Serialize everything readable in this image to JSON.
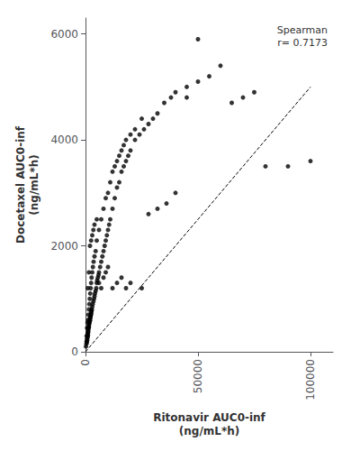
{
  "chart_data": {
    "type": "scatter",
    "xlabel": "Ritonavir AUC0-inf\n(ng/mL*h)",
    "ylabel": "Docetaxel AUC0-inf\n(ng/mL*h)",
    "annotation": "Spearman\nr= 0.7173",
    "xlim": [
      0,
      110000
    ],
    "ylim": [
      0,
      6300
    ],
    "xticks": [
      0,
      50000,
      100000
    ],
    "yticks": [
      0,
      2000,
      4000,
      6000
    ],
    "grid": false,
    "series": [
      {
        "type": "scatter",
        "color": "#000000",
        "marker": "circle",
        "x": [
          200,
          400,
          500,
          600,
          700,
          800,
          900,
          1000,
          1000,
          1100,
          1200,
          1200,
          1300,
          1400,
          1500,
          1500,
          1600,
          1700,
          1800,
          1800,
          1900,
          2000,
          2000,
          2100,
          2200,
          2300,
          2400,
          2500,
          2600,
          2700,
          2800,
          3000,
          3200,
          3500,
          3800,
          4000,
          4200,
          4500,
          4800,
          5000,
          5200,
          5500,
          5800,
          6000,
          6500,
          7000,
          7500,
          8000,
          8500,
          9000,
          9500,
          10000,
          10500,
          11000,
          12000,
          13000,
          14000,
          15000,
          16000,
          17000,
          18000,
          19000,
          20000,
          22000,
          24000,
          26000,
          28000,
          30000,
          32000,
          35000,
          38000,
          40000,
          45000,
          50000,
          55000,
          60000,
          65000,
          70000,
          75000,
          80000,
          90000,
          100000,
          500,
          700,
          900,
          1100,
          1300,
          1500,
          1700,
          1900,
          2100,
          2300,
          2500,
          2700,
          3000,
          3300,
          3600,
          4000,
          4500,
          5000,
          6000,
          7000,
          8000,
          9000,
          10000,
          11000,
          12000,
          13000,
          14000,
          15000,
          16000,
          17000,
          18000,
          20000,
          22000,
          25000,
          28000,
          32000,
          36000,
          40000,
          45000,
          50000,
          1000,
          1500,
          2000,
          2500,
          3000,
          3500,
          4000,
          5000,
          6000,
          7000,
          8000,
          9000,
          10000,
          12000,
          14000,
          16000,
          18000,
          20000,
          25000
        ],
        "values": [
          100,
          150,
          200,
          180,
          250,
          220,
          300,
          280,
          350,
          320,
          400,
          370,
          430,
          460,
          500,
          470,
          520,
          550,
          580,
          560,
          600,
          620,
          590,
          640,
          660,
          680,
          700,
          720,
          750,
          780,
          800,
          850,
          900,
          950,
          1000,
          1050,
          1100,
          1150,
          1200,
          1300,
          1350,
          1400,
          1450,
          1500,
          1600,
          1700,
          1800,
          1900,
          2000,
          2100,
          2200,
          2300,
          2400,
          2500,
          2700,
          2900,
          3100,
          3200,
          3400,
          3500,
          3600,
          3700,
          3800,
          4000,
          4100,
          4200,
          4300,
          4400,
          4500,
          4700,
          4800,
          4900,
          5000,
          5100,
          5200,
          5400,
          4700,
          4800,
          4900,
          3500,
          3500,
          3600,
          300,
          450,
          550,
          600,
          700,
          800,
          900,
          1000,
          1100,
          1200,
          1300,
          1400,
          1500,
          1600,
          1700,
          1800,
          1900,
          2100,
          2300,
          2500,
          2700,
          2900,
          3000,
          3200,
          3400,
          3500,
          3600,
          3700,
          3800,
          3900,
          4000,
          4100,
          4200,
          4400,
          2600,
          2700,
          2800,
          3000,
          4800,
          5900,
          1200,
          1500,
          2000,
          2100,
          2200,
          2300,
          2400,
          2500,
          1300,
          1200,
          1400,
          1500,
          1600,
          1200,
          1300,
          1400,
          1200,
          1300,
          1200
        ]
      },
      {
        "type": "line",
        "color": "#000000",
        "line_style": "dashed",
        "x": [
          0,
          100000
        ],
        "values": [
          0,
          5000
        ]
      }
    ]
  }
}
